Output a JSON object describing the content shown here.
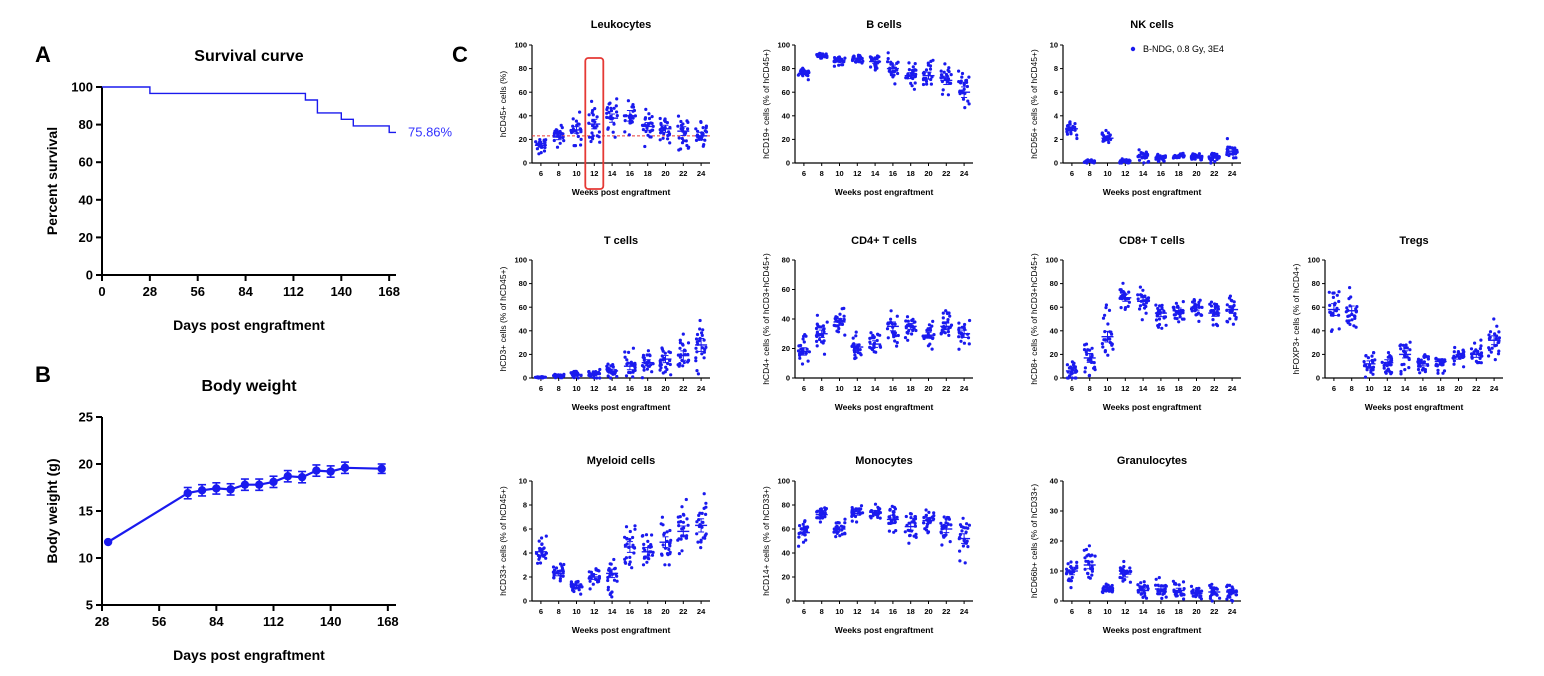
{
  "panel_letters": {
    "a": "A",
    "b": "B",
    "c": "C"
  },
  "colors": {
    "series": "#1a1aee",
    "reference_line": "#e53935",
    "highlight_box": "#e53935",
    "axis": "#000000"
  },
  "chart_data": [
    {
      "id": "survival",
      "type": "line",
      "style": "step",
      "title": "Survival curve",
      "xlabel": "Days post engraftment",
      "ylabel": "Percent survival",
      "xlim": [
        0,
        172
      ],
      "ylim": [
        0,
        100
      ],
      "xticks": [
        0,
        28,
        56,
        84,
        112,
        140,
        168
      ],
      "yticks": [
        0,
        20,
        40,
        60,
        80,
        100
      ],
      "x": [
        0,
        28,
        28,
        119,
        119,
        126,
        126,
        140,
        140,
        147,
        147,
        168,
        168,
        172
      ],
      "y": [
        100,
        100,
        96.6,
        96.6,
        93.1,
        93.1,
        86.2,
        86.2,
        82.8,
        82.8,
        79.3,
        79.3,
        75.86,
        75.86
      ],
      "annotation": "75.86%"
    },
    {
      "id": "body_weight",
      "type": "line",
      "title": "Body weight",
      "xlabel": "Days post engraftment",
      "ylabel": "Body weight (g)",
      "xlim": [
        28,
        172
      ],
      "ylim": [
        5,
        25
      ],
      "xticks": [
        28,
        56,
        84,
        112,
        140,
        168
      ],
      "yticks": [
        5,
        10,
        15,
        20,
        25
      ],
      "x": [
        31,
        70,
        77,
        84,
        91,
        98,
        105,
        112,
        119,
        126,
        133,
        140,
        147,
        165
      ],
      "y": [
        11.7,
        16.9,
        17.2,
        17.4,
        17.3,
        17.8,
        17.8,
        18.1,
        18.7,
        18.6,
        19.3,
        19.2,
        19.6,
        19.5
      ],
      "err": [
        0,
        0.6,
        0.6,
        0.6,
        0.6,
        0.6,
        0.6,
        0.6,
        0.6,
        0.6,
        0.6,
        0.6,
        0.6,
        0.5
      ]
    },
    {
      "id": "leukocytes",
      "type": "scatter",
      "title": "Leukocytes",
      "ylabel": "hCD45+ cells (%)",
      "xlabel": "Weeks post engraftment",
      "ylim": [
        0,
        100
      ],
      "yticks": [
        0,
        20,
        40,
        60,
        80,
        100
      ],
      "categories": [
        "6",
        "8",
        "10",
        "12",
        "14",
        "16",
        "18",
        "20",
        "22",
        "24"
      ],
      "means": [
        15,
        22,
        28,
        33,
        38,
        40,
        31,
        29,
        27,
        23
      ],
      "spreads": [
        6,
        9,
        11,
        16,
        14,
        18,
        13,
        12,
        15,
        12
      ],
      "reference_line": 23,
      "highlight_category": "12"
    },
    {
      "id": "b_cells",
      "type": "scatter",
      "title": "B cells",
      "ylabel": "hCD19+ cells (% of hCD45+)",
      "xlabel": "Weeks post engraftment",
      "ylim": [
        0,
        100
      ],
      "yticks": [
        0,
        20,
        40,
        60,
        80,
        100
      ],
      "categories": [
        "6",
        "8",
        "10",
        "12",
        "14",
        "16",
        "18",
        "20",
        "22",
        "24"
      ],
      "means": [
        76,
        91,
        87,
        88,
        86,
        80,
        74,
        74,
        70,
        60
      ],
      "spreads": [
        4,
        2,
        4,
        4,
        6,
        12,
        10,
        12,
        14,
        18
      ]
    },
    {
      "id": "nk_cells",
      "type": "scatter",
      "title": "NK cells",
      "ylabel": "hCD56+ cells (% of hCD45+)",
      "xlabel": "Weeks post engraftment",
      "ylim": [
        0,
        10
      ],
      "yticks": [
        0,
        2,
        4,
        6,
        8,
        10
      ],
      "categories": [
        "6",
        "8",
        "10",
        "12",
        "14",
        "16",
        "18",
        "20",
        "22",
        "24"
      ],
      "means": [
        2.9,
        0.1,
        2.1,
        0.15,
        0.6,
        0.5,
        0.6,
        0.5,
        0.5,
        1.0
      ],
      "spreads": [
        0.6,
        0.15,
        0.5,
        0.15,
        0.5,
        0.3,
        0.2,
        0.3,
        0.4,
        0.8
      ],
      "legend": "B-NDG, 0.8 Gy, 3E4"
    },
    {
      "id": "t_cells",
      "type": "scatter",
      "title": "T cells",
      "ylabel": "hCD3+ cells (% of hCD45+)",
      "xlabel": "Weeks post engraftment",
      "ylim": [
        0,
        100
      ],
      "yticks": [
        0,
        20,
        40,
        60,
        80,
        100
      ],
      "categories": [
        "6",
        "8",
        "10",
        "12",
        "14",
        "16",
        "18",
        "20",
        "22",
        "24"
      ],
      "means": [
        0.5,
        1.5,
        3,
        3,
        6,
        10,
        13,
        16,
        19,
        28
      ],
      "spreads": [
        0.5,
        1.5,
        3,
        4,
        6,
        12,
        10,
        12,
        16,
        22
      ]
    },
    {
      "id": "cd4_t_cells",
      "type": "scatter",
      "title": "CD4+ T cells",
      "ylabel": "hCD4+ cells (% of hCD3+hCD45+)",
      "xlabel": "Weeks post engraftment",
      "ylim": [
        0,
        80
      ],
      "yticks": [
        0,
        20,
        40,
        60,
        80
      ],
      "categories": [
        "6",
        "8",
        "10",
        "12",
        "14",
        "16",
        "18",
        "20",
        "22",
        "24"
      ],
      "means": [
        18,
        30,
        38,
        21,
        23,
        35,
        35,
        29,
        35,
        30
      ],
      "spreads": [
        10,
        10,
        9,
        8,
        9,
        12,
        8,
        8,
        9,
        10
      ]
    },
    {
      "id": "cd8_t_cells",
      "type": "scatter",
      "title": "CD8+ T cells",
      "ylabel": "hCD8+ cells (% of hCD3+hCD45+)",
      "xlabel": "Weeks post engraftment",
      "ylim": [
        0,
        100
      ],
      "yticks": [
        0,
        20,
        40,
        60,
        80,
        100
      ],
      "categories": [
        "6",
        "8",
        "10",
        "12",
        "14",
        "16",
        "18",
        "20",
        "22",
        "24"
      ],
      "means": [
        6,
        17,
        35,
        68,
        65,
        55,
        57,
        60,
        55,
        58
      ],
      "spreads": [
        8,
        15,
        18,
        12,
        12,
        12,
        9,
        10,
        11,
        13
      ]
    },
    {
      "id": "tregs",
      "type": "scatter",
      "title": "Tregs",
      "ylabel": "hFOXP3+ cells (% of hCD4+)",
      "xlabel": "Weeks post engraftment",
      "ylim": [
        0,
        100
      ],
      "yticks": [
        0,
        20,
        40,
        60,
        80,
        100
      ],
      "categories": [
        "6",
        "8",
        "10",
        "12",
        "14",
        "16",
        "18",
        "20",
        "22",
        "24"
      ],
      "means": [
        58,
        57,
        12,
        13,
        20,
        12,
        14,
        18,
        20,
        32
      ],
      "spreads": [
        20,
        16,
        10,
        10,
        12,
        7,
        9,
        8,
        10,
        15
      ]
    },
    {
      "id": "myeloid_cells",
      "type": "scatter",
      "title": "Myeloid cells",
      "ylabel": "hCD33+ cells (% of hCD45+)",
      "xlabel": "Weeks post engraftment",
      "ylim": [
        0,
        10
      ],
      "yticks": [
        0,
        2,
        4,
        6,
        8,
        10
      ],
      "categories": [
        "6",
        "8",
        "10",
        "12",
        "14",
        "16",
        "18",
        "20",
        "22",
        "24"
      ],
      "means": [
        4.1,
        2.3,
        1.3,
        2.0,
        2.3,
        4.5,
        4.1,
        4.9,
        5.8,
        6.3
      ],
      "spreads": [
        1.2,
        0.8,
        0.5,
        0.8,
        1.4,
        1.8,
        1.4,
        1.8,
        1.8,
        2.2
      ]
    },
    {
      "id": "monocytes",
      "type": "scatter",
      "title": "Monocytes",
      "ylabel": "hCD14+ cells (% of hCD33+)",
      "xlabel": "Weeks post engraftment",
      "ylim": [
        0,
        100
      ],
      "yticks": [
        0,
        20,
        40,
        60,
        80,
        100
      ],
      "categories": [
        "6",
        "8",
        "10",
        "12",
        "14",
        "16",
        "18",
        "20",
        "22",
        "24"
      ],
      "means": [
        57,
        72,
        60,
        73,
        74,
        68,
        62,
        67,
        60,
        52
      ],
      "spreads": [
        8,
        5,
        7,
        6,
        6,
        14,
        12,
        10,
        12,
        16
      ]
    },
    {
      "id": "granulocytes",
      "type": "scatter",
      "title": "Granulocytes",
      "ylabel": "hCD66b+ cells (% of hCD33+)",
      "xlabel": "Weeks post engraftment",
      "ylim": [
        0,
        40
      ],
      "yticks": [
        0,
        10,
        20,
        30,
        40
      ],
      "categories": [
        "6",
        "8",
        "10",
        "12",
        "14",
        "16",
        "18",
        "20",
        "22",
        "24"
      ],
      "means": [
        10,
        12,
        4,
        9,
        3.5,
        4,
        3.5,
        2.5,
        3,
        3
      ],
      "spreads": [
        5,
        5,
        2,
        4,
        3,
        3,
        3,
        2,
        3,
        2.5
      ]
    }
  ]
}
